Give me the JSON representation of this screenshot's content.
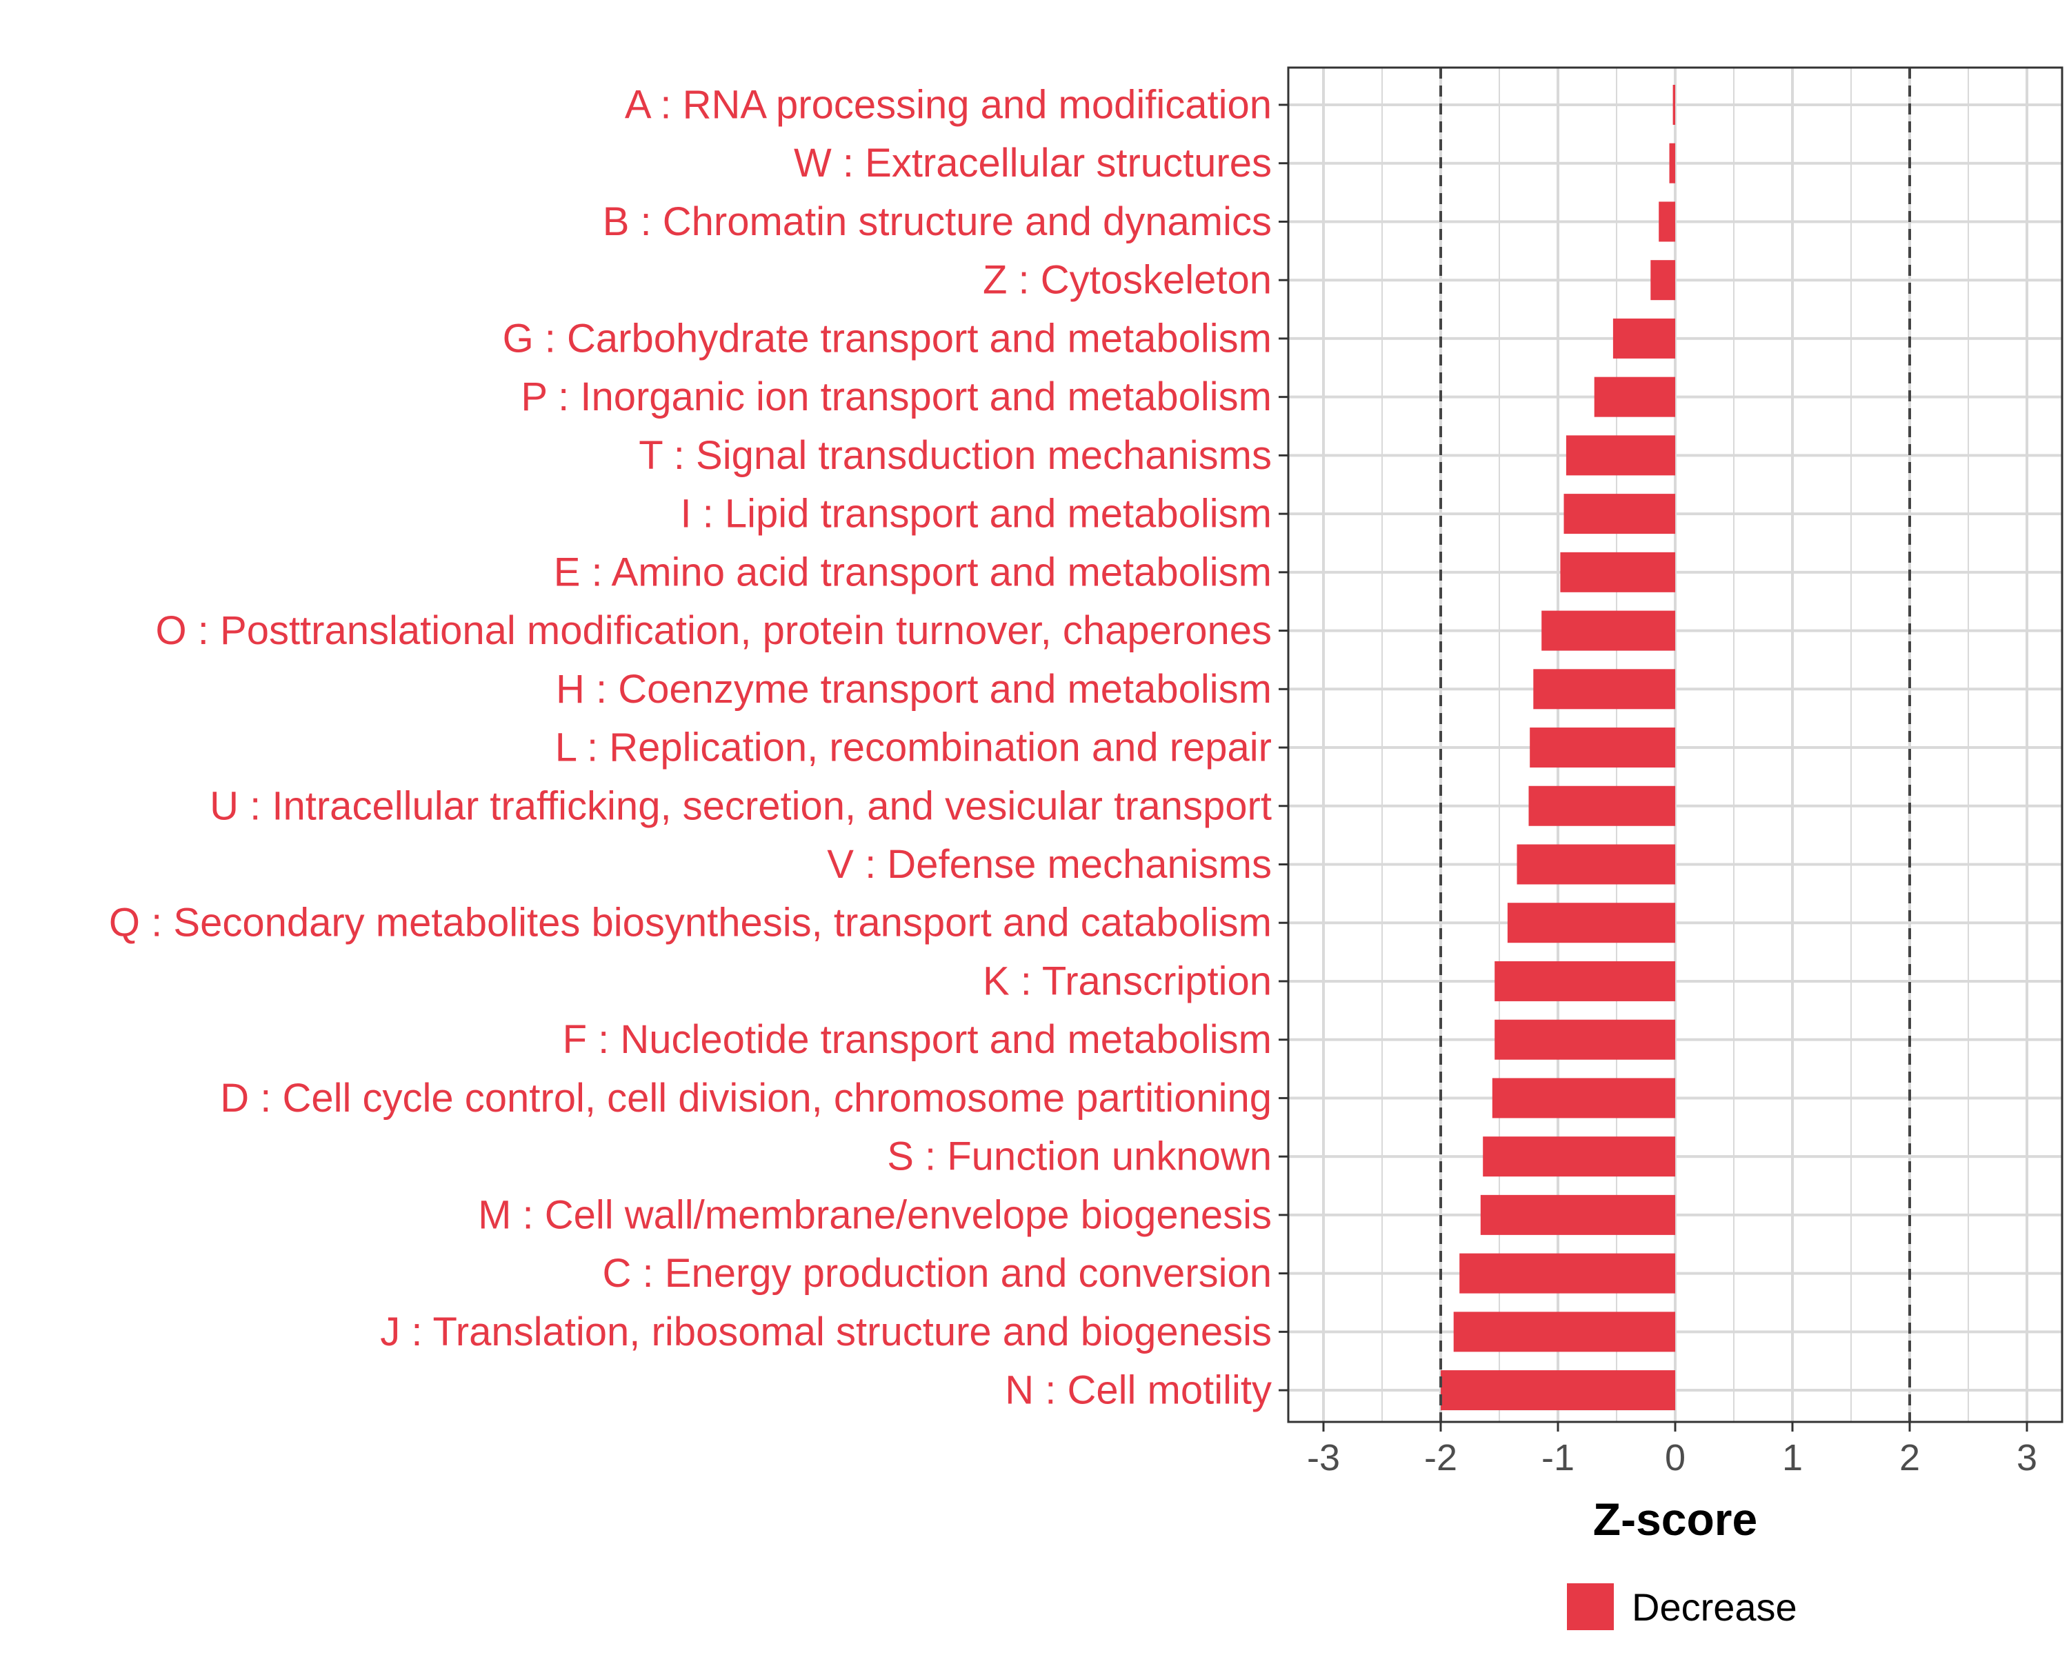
{
  "colors": {
    "decrease": "#E63946",
    "grid": "#D9D9D9",
    "axis": "#333333",
    "reference_line": "#444444"
  },
  "chart_data": {
    "type": "bar",
    "orientation": "horizontal",
    "categories": [
      "A : RNA processing and modification",
      "W : Extracellular structures",
      "B : Chromatin structure and dynamics",
      "Z : Cytoskeleton",
      "G : Carbohydrate transport and metabolism",
      "P : Inorganic ion transport and metabolism",
      "T : Signal transduction mechanisms",
      "I : Lipid transport and metabolism",
      "E : Amino acid transport and metabolism",
      "O : Posttranslational modification, protein turnover, chaperones",
      "H : Coenzyme transport and metabolism",
      "L : Replication, recombination and repair",
      "U : Intracellular trafficking, secretion, and vesicular transport",
      "V : Defense mechanisms",
      "Q : Secondary metabolites biosynthesis, transport and catabolism",
      "K : Transcription",
      "F : Nucleotide transport and metabolism",
      "D : Cell cycle control, cell division, chromosome partitioning",
      "S : Function unknown",
      "M : Cell wall/membrane/envelope biogenesis",
      "C : Energy production and conversion",
      "J : Translation, ribosomal structure and biogenesis",
      "N : Cell motility"
    ],
    "series": [
      {
        "name": "Decrease",
        "values": [
          -0.02,
          -0.05,
          -0.14,
          -0.21,
          -0.53,
          -0.69,
          -0.93,
          -0.95,
          -0.98,
          -1.14,
          -1.21,
          -1.24,
          -1.25,
          -1.35,
          -1.43,
          -1.54,
          -1.54,
          -1.56,
          -1.64,
          -1.66,
          -1.84,
          -1.89,
          -2.0
        ]
      }
    ],
    "xlabel": "Z-score",
    "xlim": [
      -3.3,
      3.3
    ],
    "xticks": [
      -3,
      -2,
      -1,
      0,
      1,
      2,
      3
    ],
    "reference_lines": [
      -2,
      2
    ],
    "grid": true,
    "legend": {
      "placement": "bottom",
      "entries": [
        "Decrease"
      ]
    }
  }
}
